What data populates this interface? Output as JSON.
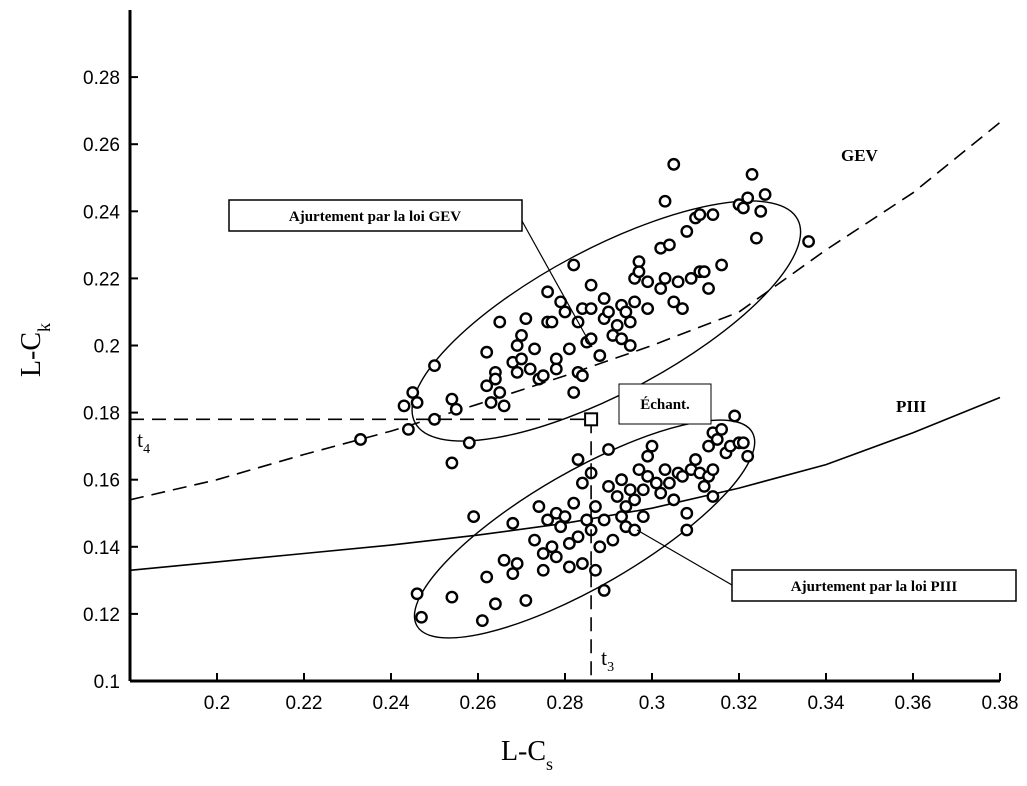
{
  "chart_data": {
    "type": "scatter",
    "title": "",
    "xlabel": {
      "main": "L-C",
      "sub": "s"
    },
    "ylabel": {
      "main": "L-C",
      "sub": "k"
    },
    "xlim": [
      0.18,
      0.38
    ],
    "ylim": [
      0.1,
      0.3
    ],
    "xticks": [
      0.2,
      0.22,
      0.24,
      0.26,
      0.28,
      0.3,
      0.32,
      0.34,
      0.36,
      0.38
    ],
    "xtick_labels": [
      "0.2",
      "0.22",
      "0.24",
      "0.26",
      "0.28",
      "0.3",
      "0.32",
      "0.34",
      "0.36",
      "0.38"
    ],
    "yticks": [
      0.1,
      0.12,
      0.14,
      0.16,
      0.18,
      0.2,
      0.22,
      0.24,
      0.26,
      0.28
    ],
    "ytick_labels": [
      "0.1",
      "0.12",
      "0.14",
      "0.16",
      "0.18",
      "0.2",
      "0.22",
      "0.24",
      "0.26",
      "0.28"
    ],
    "grid": false,
    "legend": "none",
    "curves": [
      {
        "name": "GEV",
        "style": "dashed",
        "points": [
          [
            0.18,
            0.154
          ],
          [
            0.2,
            0.16
          ],
          [
            0.22,
            0.1675
          ],
          [
            0.24,
            0.1745
          ],
          [
            0.26,
            0.1825
          ],
          [
            0.28,
            0.191
          ],
          [
            0.3,
            0.2
          ],
          [
            0.32,
            0.21
          ],
          [
            0.34,
            0.2285
          ],
          [
            0.36,
            0.2455
          ],
          [
            0.38,
            0.2665
          ]
        ]
      },
      {
        "name": "PIII",
        "style": "solid",
        "points": [
          [
            0.18,
            0.133
          ],
          [
            0.2,
            0.1355
          ],
          [
            0.22,
            0.138
          ],
          [
            0.24,
            0.1405
          ],
          [
            0.26,
            0.1435
          ],
          [
            0.28,
            0.147
          ],
          [
            0.3,
            0.1515
          ],
          [
            0.32,
            0.1575
          ],
          [
            0.34,
            0.1645
          ],
          [
            0.36,
            0.174
          ],
          [
            0.38,
            0.1845
          ]
        ]
      }
    ],
    "ellipses": [
      {
        "label": "Ajurtement par la loi GEV",
        "center": [
          0.2895,
          0.2073
        ],
        "rx": 0.0498,
        "ry": 0.0215,
        "angle_deg": -28
      },
      {
        "label": "Ajurtement par la loi PIII",
        "center": [
          0.2845,
          0.1453
        ],
        "rx": 0.0445,
        "ry": 0.0172,
        "angle_deg": -30
      }
    ],
    "sample_point": {
      "label": "Échant.",
      "x": 0.286,
      "y": 0.178,
      "t3_label": "t",
      "t3_sub": "3",
      "t4_label": "t",
      "t4_sub": "4"
    },
    "curve_labels": [
      "GEV",
      "PIII"
    ],
    "gev_points": [
      [
        0.233,
        0.172
      ],
      [
        0.243,
        0.182
      ],
      [
        0.244,
        0.175
      ],
      [
        0.245,
        0.186
      ],
      [
        0.246,
        0.183
      ],
      [
        0.25,
        0.178
      ],
      [
        0.25,
        0.194
      ],
      [
        0.254,
        0.184
      ],
      [
        0.254,
        0.165
      ],
      [
        0.255,
        0.181
      ],
      [
        0.258,
        0.171
      ],
      [
        0.262,
        0.188
      ],
      [
        0.262,
        0.198
      ],
      [
        0.263,
        0.183
      ],
      [
        0.264,
        0.192
      ],
      [
        0.264,
        0.19
      ],
      [
        0.265,
        0.207
      ],
      [
        0.265,
        0.186
      ],
      [
        0.266,
        0.182
      ],
      [
        0.268,
        0.195
      ],
      [
        0.269,
        0.2
      ],
      [
        0.269,
        0.192
      ],
      [
        0.27,
        0.203
      ],
      [
        0.27,
        0.196
      ],
      [
        0.271,
        0.208
      ],
      [
        0.272,
        0.193
      ],
      [
        0.273,
        0.199
      ],
      [
        0.274,
        0.19
      ],
      [
        0.275,
        0.191
      ],
      [
        0.276,
        0.207
      ],
      [
        0.276,
        0.216
      ],
      [
        0.277,
        0.207
      ],
      [
        0.278,
        0.196
      ],
      [
        0.278,
        0.193
      ],
      [
        0.279,
        0.213
      ],
      [
        0.28,
        0.21
      ],
      [
        0.281,
        0.199
      ],
      [
        0.282,
        0.224
      ],
      [
        0.283,
        0.207
      ],
      [
        0.283,
        0.192
      ],
      [
        0.284,
        0.211
      ],
      [
        0.285,
        0.201
      ],
      [
        0.286,
        0.202
      ],
      [
        0.286,
        0.218
      ],
      [
        0.286,
        0.211
      ],
      [
        0.288,
        0.197
      ],
      [
        0.289,
        0.214
      ],
      [
        0.289,
        0.208
      ],
      [
        0.29,
        0.21
      ],
      [
        0.291,
        0.203
      ],
      [
        0.292,
        0.206
      ],
      [
        0.293,
        0.202
      ],
      [
        0.293,
        0.212
      ],
      [
        0.294,
        0.21
      ],
      [
        0.295,
        0.2
      ],
      [
        0.295,
        0.207
      ],
      [
        0.296,
        0.22
      ],
      [
        0.296,
        0.213
      ],
      [
        0.297,
        0.225
      ],
      [
        0.297,
        0.222
      ],
      [
        0.299,
        0.211
      ],
      [
        0.299,
        0.219
      ],
      [
        0.302,
        0.229
      ],
      [
        0.302,
        0.217
      ],
      [
        0.303,
        0.243
      ],
      [
        0.303,
        0.22
      ],
      [
        0.304,
        0.23
      ],
      [
        0.305,
        0.213
      ],
      [
        0.305,
        0.254
      ],
      [
        0.306,
        0.219
      ],
      [
        0.307,
        0.211
      ],
      [
        0.308,
        0.234
      ],
      [
        0.309,
        0.22
      ],
      [
        0.31,
        0.238
      ],
      [
        0.311,
        0.239
      ],
      [
        0.311,
        0.222
      ],
      [
        0.312,
        0.222
      ],
      [
        0.313,
        0.217
      ],
      [
        0.314,
        0.239
      ],
      [
        0.316,
        0.224
      ],
      [
        0.32,
        0.242
      ],
      [
        0.321,
        0.241
      ],
      [
        0.322,
        0.244
      ],
      [
        0.323,
        0.251
      ],
      [
        0.324,
        0.232
      ],
      [
        0.325,
        0.24
      ],
      [
        0.326,
        0.245
      ],
      [
        0.336,
        0.231
      ],
      [
        0.282,
        0.186
      ],
      [
        0.284,
        0.191
      ]
    ],
    "piii_points": [
      [
        0.246,
        0.126
      ],
      [
        0.247,
        0.119
      ],
      [
        0.254,
        0.125
      ],
      [
        0.259,
        0.149
      ],
      [
        0.261,
        0.118
      ],
      [
        0.262,
        0.131
      ],
      [
        0.264,
        0.123
      ],
      [
        0.266,
        0.136
      ],
      [
        0.268,
        0.147
      ],
      [
        0.269,
        0.135
      ],
      [
        0.271,
        0.124
      ],
      [
        0.273,
        0.142
      ],
      [
        0.274,
        0.152
      ],
      [
        0.275,
        0.138
      ],
      [
        0.275,
        0.133
      ],
      [
        0.276,
        0.148
      ],
      [
        0.277,
        0.14
      ],
      [
        0.278,
        0.15
      ],
      [
        0.278,
        0.137
      ],
      [
        0.279,
        0.146
      ],
      [
        0.28,
        0.149
      ],
      [
        0.281,
        0.134
      ],
      [
        0.281,
        0.141
      ],
      [
        0.282,
        0.153
      ],
      [
        0.283,
        0.166
      ],
      [
        0.283,
        0.143
      ],
      [
        0.284,
        0.135
      ],
      [
        0.284,
        0.159
      ],
      [
        0.285,
        0.148
      ],
      [
        0.286,
        0.145
      ],
      [
        0.286,
        0.162
      ],
      [
        0.287,
        0.133
      ],
      [
        0.287,
        0.152
      ],
      [
        0.288,
        0.14
      ],
      [
        0.289,
        0.127
      ],
      [
        0.289,
        0.148
      ],
      [
        0.29,
        0.169
      ],
      [
        0.29,
        0.158
      ],
      [
        0.291,
        0.142
      ],
      [
        0.292,
        0.155
      ],
      [
        0.293,
        0.16
      ],
      [
        0.293,
        0.149
      ],
      [
        0.294,
        0.152
      ],
      [
        0.294,
        0.146
      ],
      [
        0.295,
        0.157
      ],
      [
        0.296,
        0.145
      ],
      [
        0.296,
        0.154
      ],
      [
        0.297,
        0.163
      ],
      [
        0.298,
        0.157
      ],
      [
        0.298,
        0.149
      ],
      [
        0.299,
        0.167
      ],
      [
        0.299,
        0.161
      ],
      [
        0.3,
        0.17
      ],
      [
        0.301,
        0.159
      ],
      [
        0.302,
        0.156
      ],
      [
        0.303,
        0.163
      ],
      [
        0.304,
        0.159
      ],
      [
        0.305,
        0.154
      ],
      [
        0.306,
        0.162
      ],
      [
        0.307,
        0.161
      ],
      [
        0.308,
        0.15
      ],
      [
        0.308,
        0.145
      ],
      [
        0.309,
        0.163
      ],
      [
        0.31,
        0.166
      ],
      [
        0.311,
        0.162
      ],
      [
        0.312,
        0.158
      ],
      [
        0.313,
        0.161
      ],
      [
        0.313,
        0.17
      ],
      [
        0.314,
        0.163
      ],
      [
        0.314,
        0.174
      ],
      [
        0.315,
        0.172
      ],
      [
        0.316,
        0.175
      ],
      [
        0.317,
        0.168
      ],
      [
        0.318,
        0.17
      ],
      [
        0.319,
        0.179
      ],
      [
        0.32,
        0.171
      ],
      [
        0.321,
        0.171
      ],
      [
        0.322,
        0.167
      ],
      [
        0.314,
        0.155
      ],
      [
        0.268,
        0.132
      ]
    ]
  }
}
